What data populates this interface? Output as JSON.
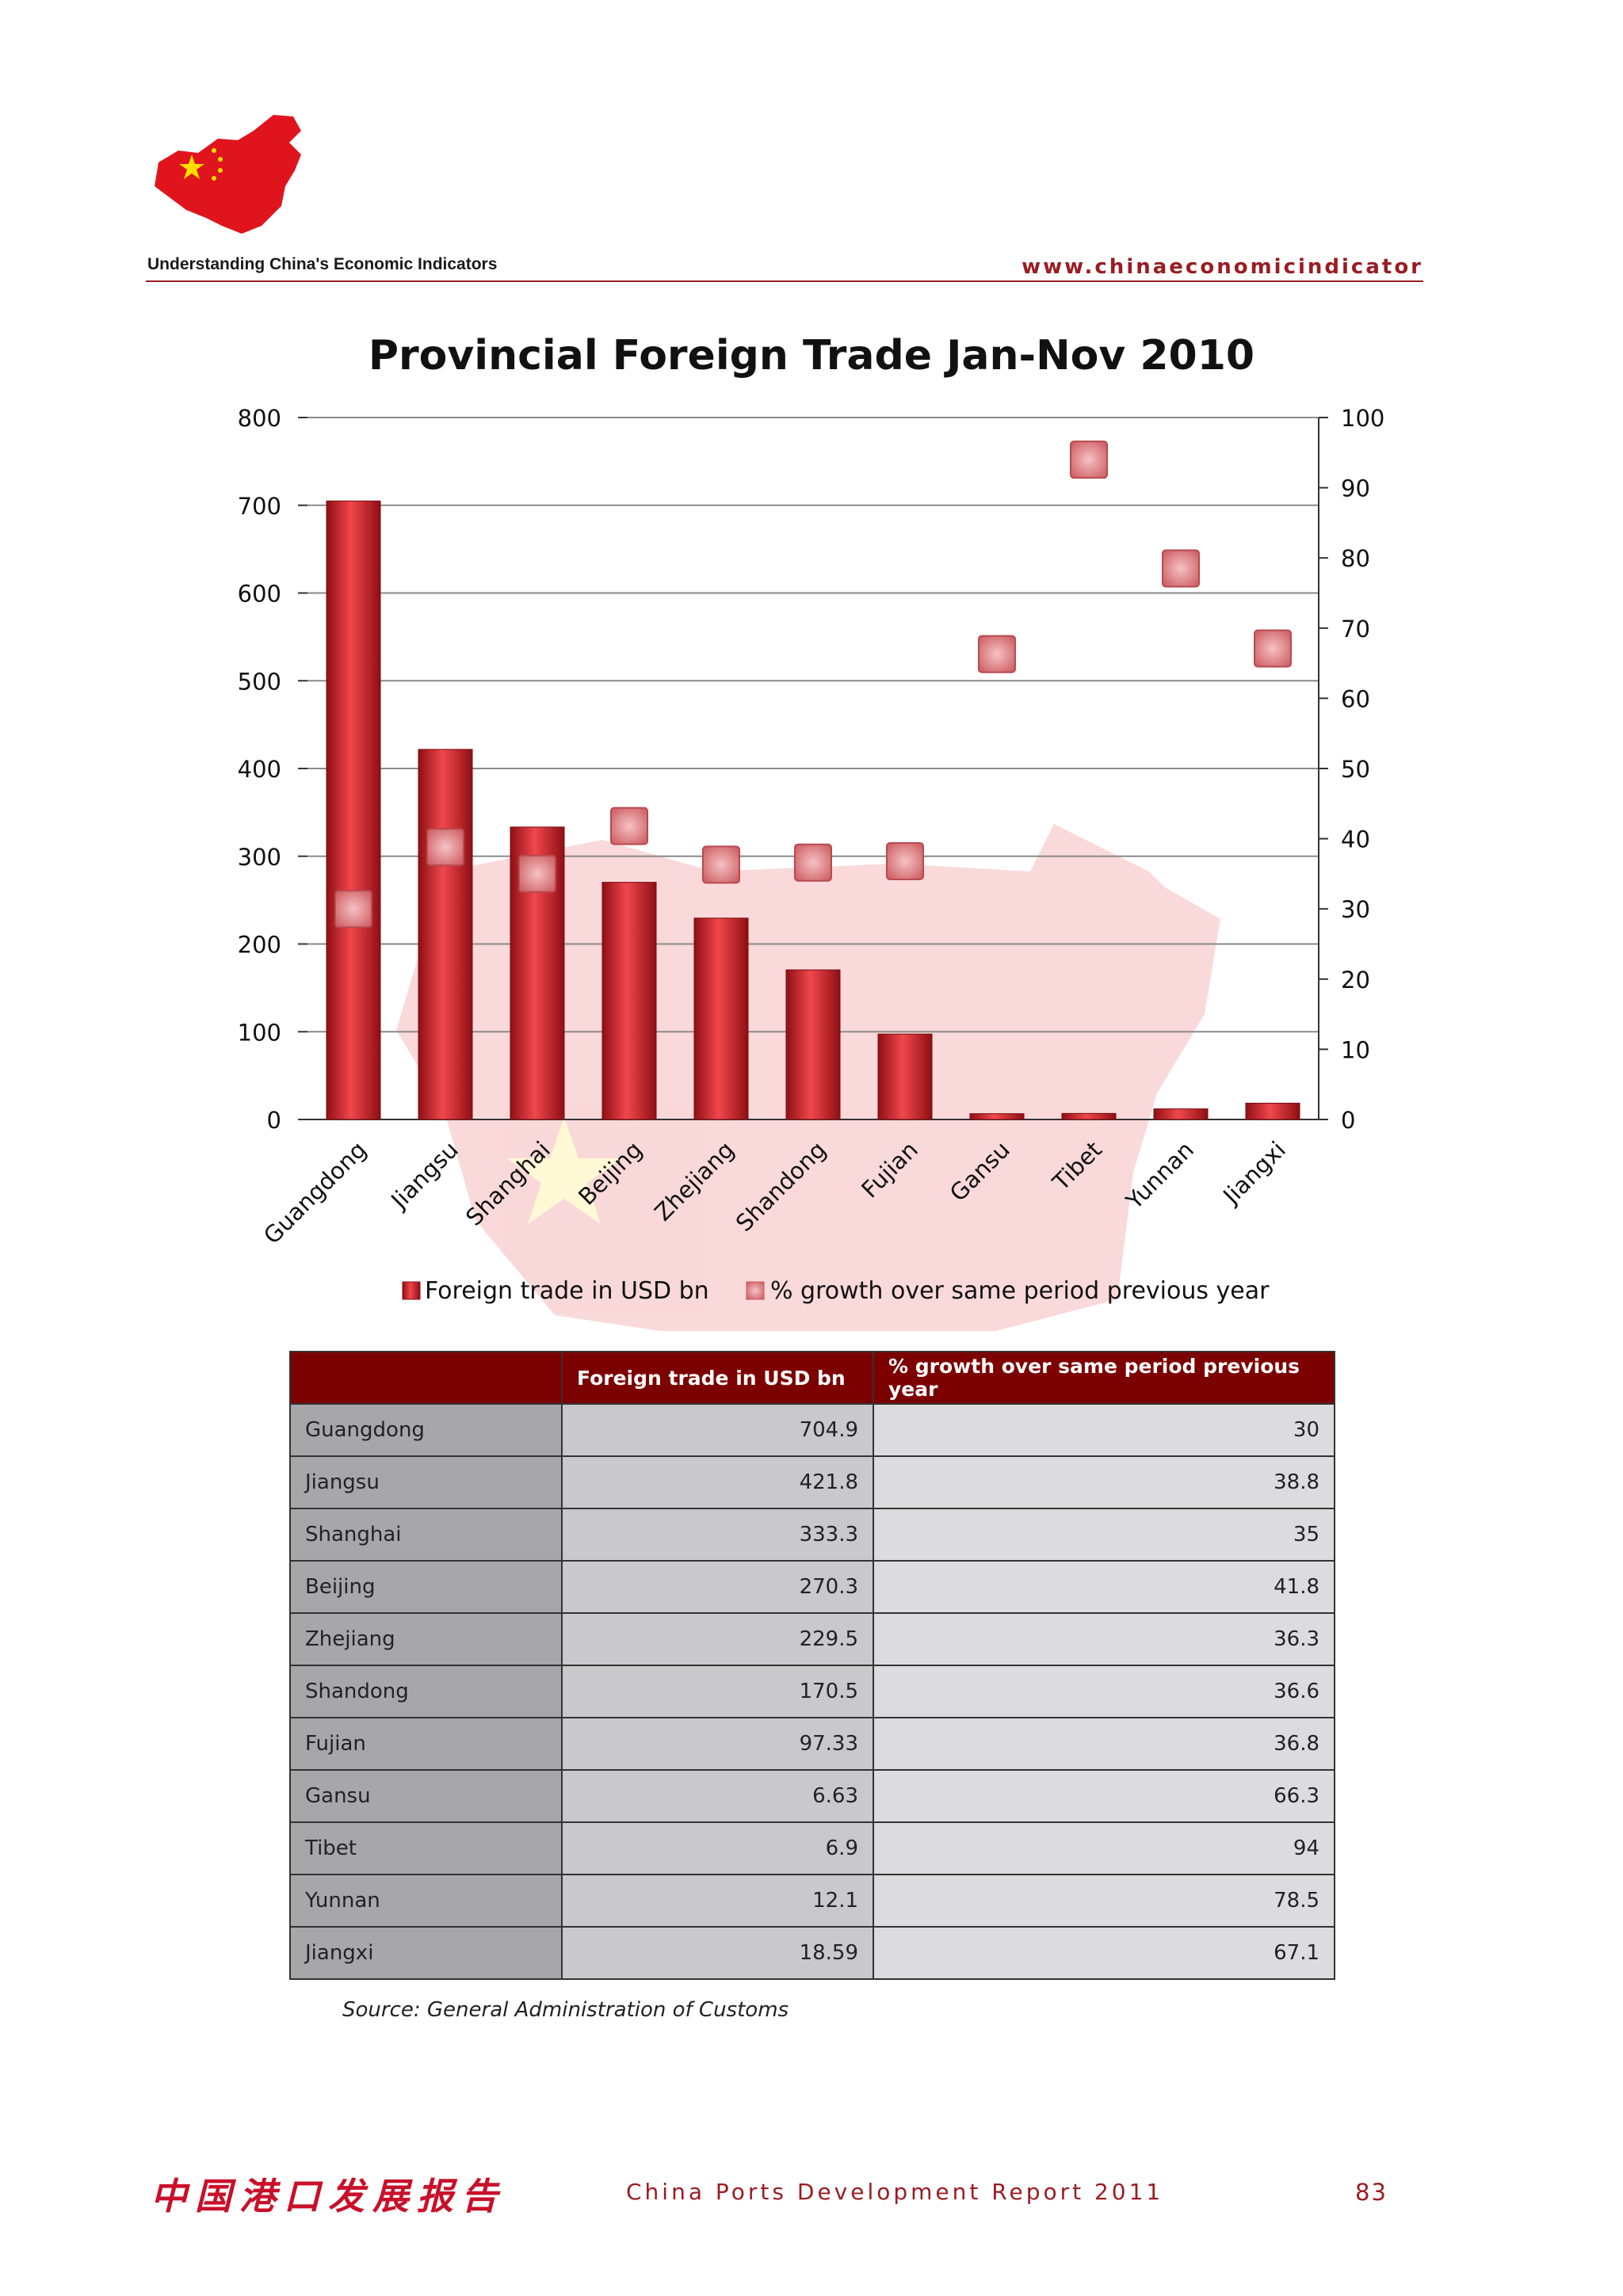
{
  "header": {
    "caption": "Understanding China's Economic Indicators",
    "url": "www.chinaeconomicindicator"
  },
  "colors": {
    "brand_red": "#9a1c22",
    "bar_red": "#c8262c",
    "marker_pink": "#e58b8f",
    "table_header": "#7d0000"
  },
  "chart_data": {
    "type": "bar",
    "title": "Provincial Foreign Trade Jan-Nov 2010",
    "categories": [
      "Guangdong",
      "Jiangsu",
      "Shanghai",
      "Beijing",
      "Zhejiang",
      "Shandong",
      "Fujian",
      "Gansu",
      "Tibet",
      "Yunnan",
      "Jiangxi"
    ],
    "series": [
      {
        "name": "Foreign trade in USD bn",
        "type": "bar",
        "axis": "left",
        "values": [
          704.9,
          421.8,
          333.3,
          270.3,
          229.5,
          170.5,
          97.33,
          6.63,
          6.9,
          12.1,
          18.59
        ]
      },
      {
        "name": "% growth over same period previous year",
        "type": "marker",
        "axis": "right",
        "values": [
          30,
          38.8,
          35,
          41.8,
          36.3,
          36.6,
          36.8,
          66.3,
          94,
          78.5,
          67.1
        ]
      }
    ],
    "ylim": [
      0,
      800
    ],
    "yticks": [
      0,
      100,
      200,
      300,
      400,
      500,
      600,
      700,
      800
    ],
    "y2lim": [
      0,
      100
    ],
    "y2ticks": [
      0,
      10,
      20,
      30,
      40,
      50,
      60,
      70,
      80,
      90,
      100
    ],
    "grid": true,
    "legend": "bottom"
  },
  "table": {
    "headers": [
      "",
      "Foreign trade in USD bn",
      "% growth over same period previous year"
    ],
    "rows": [
      [
        "Guangdong",
        "704.9",
        "30"
      ],
      [
        "Jiangsu",
        "421.8",
        "38.8"
      ],
      [
        "Shanghai",
        "333.3",
        "35"
      ],
      [
        "Beijing",
        "270.3",
        "41.8"
      ],
      [
        "Zhejiang",
        "229.5",
        "36.3"
      ],
      [
        "Shandong",
        "170.5",
        "36.6"
      ],
      [
        "Fujian",
        "97.33",
        "36.8"
      ],
      [
        "Gansu",
        "6.63",
        "66.3"
      ],
      [
        "Tibet",
        "6.9",
        "94"
      ],
      [
        "Yunnan",
        "12.1",
        "78.5"
      ],
      [
        "Jiangxi",
        "18.59",
        "67.1"
      ]
    ]
  },
  "source": "Source: General Administration of Customs",
  "footer": {
    "chinese_title": "中国港口发展报告",
    "report_title": "China Ports Development Report 2011",
    "page_number": "83"
  }
}
